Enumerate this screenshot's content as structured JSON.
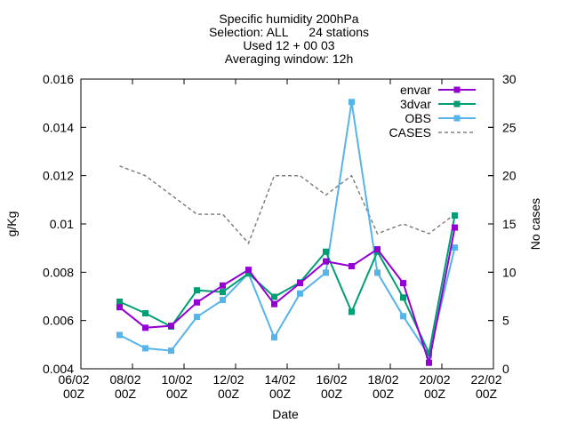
{
  "chart_data": {
    "type": "line",
    "title_lines": [
      "Specific humidity 200hPa",
      "Selection: ALL      24 stations",
      "Used 12 + 00 03",
      "Averaging window: 12h"
    ],
    "xlabel": "Date",
    "ylabel": "g/Kg",
    "y2label": "No cases",
    "x_ticks": [
      {
        "day": 0,
        "line1": "06/02",
        "line2": "00Z"
      },
      {
        "day": 2,
        "line1": "08/02",
        "line2": "00Z"
      },
      {
        "day": 4,
        "line1": "10/02",
        "line2": "00Z"
      },
      {
        "day": 6,
        "line1": "12/02",
        "line2": "00Z"
      },
      {
        "day": 8,
        "line1": "14/02",
        "line2": "00Z"
      },
      {
        "day": 10,
        "line1": "16/02",
        "line2": "00Z"
      },
      {
        "day": 12,
        "line1": "18/02",
        "line2": "00Z"
      },
      {
        "day": 14,
        "line1": "20/02",
        "line2": "00Z"
      },
      {
        "day": 16,
        "line1": "22/02",
        "line2": "00Z"
      }
    ],
    "xlim": [
      0,
      16
    ],
    "ylim": [
      0.004,
      0.016
    ],
    "y_ticks": [
      "0.004",
      "0.006",
      "0.008",
      "0.01",
      "0.012",
      "0.014",
      "0.016"
    ],
    "y2lim": [
      0,
      30
    ],
    "y2_ticks": [
      "0",
      "5",
      "10",
      "15",
      "20",
      "25",
      "30"
    ],
    "x": [
      1.5,
      2.5,
      3.5,
      4.5,
      5.5,
      6.5,
      7.5,
      8.5,
      9.5,
      10.5,
      11.5,
      12.5,
      13.5,
      14.5
    ],
    "x_dates": [
      "07/02 12Z",
      "08/02 12Z",
      "09/02 12Z",
      "10/02 12Z",
      "11/02 12Z",
      "12/02 12Z",
      "13/02 12Z",
      "14/02 12Z",
      "15/02 12Z",
      "16/02 12Z",
      "17/02 12Z",
      "18/02 12Z",
      "19/02 12Z",
      "20/02 12Z"
    ],
    "series": [
      {
        "name": "envar",
        "color": "#9400d3",
        "marker": "filled-square",
        "values": [
          0.00655,
          0.0057,
          0.00578,
          0.00675,
          0.00745,
          0.0081,
          0.00668,
          0.00755,
          0.00845,
          0.00825,
          0.00895,
          0.00755,
          0.00425,
          0.00985
        ]
      },
      {
        "name": "3dvar",
        "color": "#009e73",
        "marker": "filled-square",
        "values": [
          0.00678,
          0.0063,
          0.00575,
          0.00725,
          0.00718,
          0.00795,
          0.00698,
          0.00758,
          0.00885,
          0.00636,
          0.00885,
          0.00695,
          0.00465,
          0.01035
        ]
      },
      {
        "name": "OBS",
        "color": "#56b4e9",
        "marker": "filled-square",
        "values": [
          0.0054,
          0.00485,
          0.00475,
          0.00615,
          0.00685,
          0.00795,
          0.0053,
          0.00712,
          0.00798,
          0.01505,
          0.00798,
          0.00618,
          0.00455,
          0.00902
        ]
      },
      {
        "name": "CASES",
        "color": "#808080",
        "dash": true,
        "axis": "y2",
        "values": [
          21,
          20,
          18,
          16,
          16,
          13,
          20,
          20,
          18,
          20,
          14,
          15,
          14,
          16
        ]
      }
    ],
    "legend_position": "top-right",
    "grid": false
  }
}
